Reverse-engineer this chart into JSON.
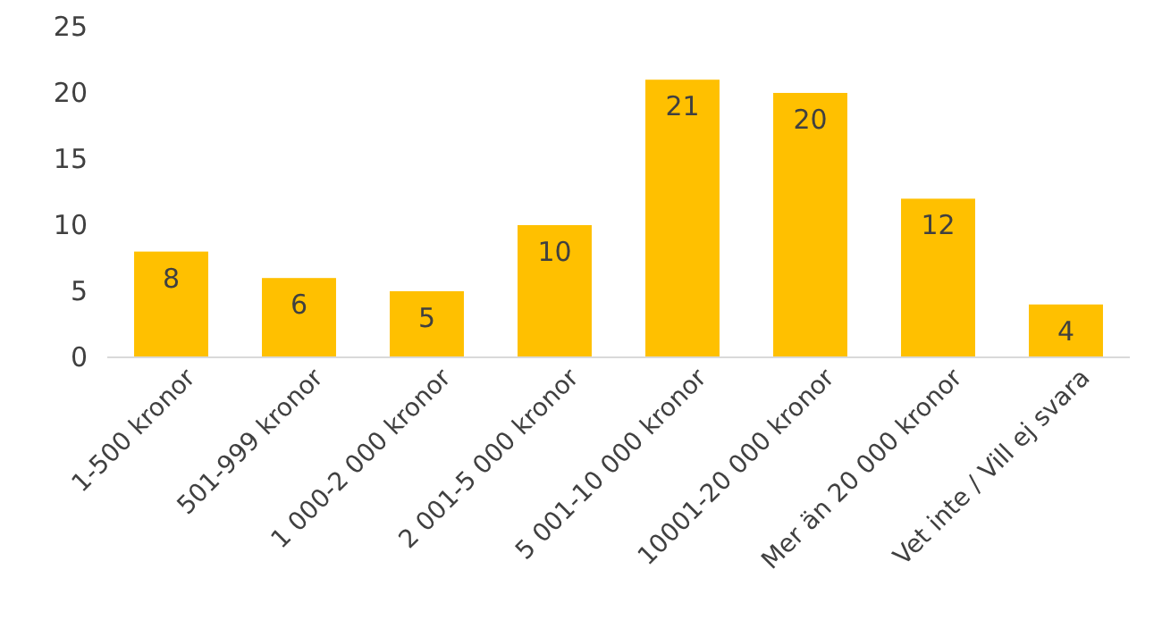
{
  "chart_data": {
    "type": "bar",
    "categories": [
      "1-500 kronor",
      "501-999 kronor",
      "1 000-2 000 kronor",
      "2 001-5 000 kronor",
      "5 001-10 000 kronor",
      "10001-20 000 kronor",
      "Mer än 20 000 kronor",
      "Vet inte / Vill ej svara"
    ],
    "values": [
      8,
      6,
      5,
      10,
      21,
      20,
      12,
      4
    ],
    "color": "#ffc000",
    "ylim": [
      0,
      25
    ],
    "yticks": [
      0,
      5,
      10,
      15,
      20,
      25
    ],
    "data_labels": true
  }
}
